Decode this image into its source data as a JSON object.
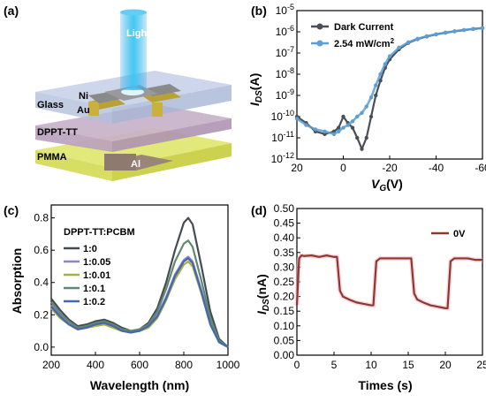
{
  "panels": {
    "a": {
      "label": "(a)",
      "layers": {
        "light": "Light",
        "ni": "Ni",
        "au": "Au",
        "glass": "Glass",
        "dppt": "DPPT-TT",
        "pmma": "PMMA",
        "al": "Al"
      },
      "colors": {
        "light": "#2aa7e8",
        "glass": "#c4cfe6",
        "dppt": "#c6b0c8",
        "pmma": "#e3e87b",
        "electrode": "#8a8a8a",
        "al": "#9a8678"
      }
    },
    "b": {
      "label": "(b)"
    },
    "c": {
      "label": "(c)"
    },
    "d": {
      "label": "(d)"
    }
  },
  "chart_data": [
    {
      "id": "b",
      "type": "line",
      "xlabel": "VG(V)",
      "ylabel": "IDS(A)",
      "x_reversed": true,
      "xlim": [
        20,
        -60
      ],
      "ylim": [
        1e-12,
        1e-05
      ],
      "y_log": true,
      "x_ticks": [
        20,
        0,
        -20,
        -40,
        -60
      ],
      "x_tick_labels": [
        "20",
        "0",
        "-20",
        "-40",
        "-60"
      ],
      "y_ticks": [
        1e-12,
        1e-11,
        1e-10,
        1e-09,
        1e-08,
        1e-07,
        1e-06,
        1e-05
      ],
      "y_tick_labels": [
        "10-12",
        "10-11",
        "10-10",
        "10-9",
        "10-8",
        "10-7",
        "10-6",
        "10-5"
      ],
      "legend_position": "top-right",
      "series": [
        {
          "name": "Dark Current",
          "color": "#4a4f55",
          "x": [
            20,
            16,
            12,
            8,
            4,
            2,
            0,
            -2,
            -4,
            -6,
            -8,
            -10,
            -12,
            -14,
            -16,
            -18,
            -20,
            -24,
            -28,
            -32,
            -36,
            -40,
            -44,
            -48,
            -52,
            -56,
            -60
          ],
          "y": [
            1e-10,
            5e-11,
            2e-11,
            1.5e-11,
            2e-11,
            3e-11,
            1e-10,
            5e-11,
            3e-11,
            1e-11,
            3e-12,
            1e-11,
            1e-10,
            1e-09,
            5e-09,
            2e-08,
            5e-08,
            1.5e-07,
            3e-07,
            4.5e-07,
            6e-07,
            7.5e-07,
            9e-07,
            1.05e-06,
            1.2e-06,
            1.35e-06,
            1.5e-06
          ]
        },
        {
          "name": "2.54 mW/cm2",
          "color": "#5b9fd6",
          "x": [
            20,
            16,
            12,
            8,
            4,
            2,
            0,
            -2,
            -4,
            -6,
            -8,
            -10,
            -12,
            -14,
            -16,
            -18,
            -20,
            -24,
            -28,
            -32,
            -36,
            -40,
            -44,
            -48,
            -52,
            -56,
            -60
          ],
          "y": [
            8e-11,
            4e-11,
            2.5e-11,
            2e-11,
            1.5e-11,
            2e-11,
            3e-11,
            4e-11,
            6e-11,
            1e-10,
            1.5e-10,
            3e-10,
            8e-10,
            3e-09,
            1e-08,
            3e-08,
            7e-08,
            1.8e-07,
            3.2e-07,
            4.7e-07,
            6.2e-07,
            7.7e-07,
            9.2e-07,
            1.07e-06,
            1.22e-06,
            1.37e-06,
            1.5e-06
          ]
        }
      ]
    },
    {
      "id": "c",
      "type": "line",
      "xlabel": "Wavelength (nm)",
      "ylabel": "Absorption",
      "xlim": [
        200,
        1000
      ],
      "ylim": [
        -0.05,
        0.88
      ],
      "x_ticks": [
        200,
        400,
        600,
        800,
        1000
      ],
      "y_ticks": [
        0.0,
        0.2,
        0.4,
        0.6,
        0.8
      ],
      "y_tick_labels": [
        "0.0",
        "0.2",
        "0.4",
        "0.6",
        "0.8"
      ],
      "legend_title": "DPPT-TT:PCBM",
      "legend_position": "top-left",
      "series": [
        {
          "name": "1:0",
          "color": "#454b52",
          "x": [
            200,
            240,
            280,
            320,
            360,
            400,
            440,
            480,
            520,
            560,
            600,
            640,
            680,
            720,
            760,
            800,
            820,
            840,
            880,
            920,
            960,
            1000
          ],
          "y": [
            0.3,
            0.23,
            0.17,
            0.13,
            0.14,
            0.16,
            0.17,
            0.15,
            0.12,
            0.1,
            0.11,
            0.15,
            0.24,
            0.4,
            0.6,
            0.77,
            0.8,
            0.76,
            0.5,
            0.22,
            0.05,
            0.0
          ]
        },
        {
          "name": "1:0.05",
          "color": "#8f86c6",
          "x": [
            200,
            240,
            280,
            320,
            360,
            400,
            440,
            480,
            520,
            560,
            600,
            640,
            680,
            720,
            760,
            800,
            820,
            840,
            880,
            920,
            960,
            1000
          ],
          "y": [
            0.26,
            0.2,
            0.15,
            0.12,
            0.13,
            0.14,
            0.15,
            0.13,
            0.11,
            0.09,
            0.1,
            0.13,
            0.2,
            0.31,
            0.45,
            0.54,
            0.56,
            0.53,
            0.35,
            0.15,
            0.04,
            0.0
          ]
        },
        {
          "name": "1:0.01",
          "color": "#a8b23a",
          "x": [
            200,
            240,
            280,
            320,
            360,
            400,
            440,
            480,
            520,
            560,
            600,
            640,
            680,
            720,
            760,
            800,
            820,
            840,
            880,
            920,
            960,
            1000
          ],
          "y": [
            0.24,
            0.18,
            0.14,
            0.11,
            0.12,
            0.13,
            0.14,
            0.12,
            0.1,
            0.09,
            0.1,
            0.12,
            0.18,
            0.29,
            0.42,
            0.51,
            0.53,
            0.5,
            0.33,
            0.14,
            0.03,
            0.0
          ]
        },
        {
          "name": "1:0.1",
          "color": "#5f8a70",
          "x": [
            200,
            240,
            280,
            320,
            360,
            400,
            440,
            480,
            520,
            560,
            600,
            640,
            680,
            720,
            760,
            800,
            820,
            840,
            880,
            920,
            960,
            1000
          ],
          "y": [
            0.28,
            0.21,
            0.16,
            0.12,
            0.13,
            0.15,
            0.16,
            0.14,
            0.11,
            0.1,
            0.11,
            0.14,
            0.22,
            0.36,
            0.53,
            0.64,
            0.66,
            0.62,
            0.41,
            0.18,
            0.04,
            0.0
          ]
        },
        {
          "name": "1:0.2",
          "color": "#4566b0",
          "x": [
            200,
            240,
            280,
            320,
            360,
            400,
            440,
            480,
            520,
            560,
            600,
            640,
            680,
            720,
            760,
            800,
            820,
            840,
            880,
            920,
            960,
            1000
          ],
          "y": [
            0.25,
            0.19,
            0.14,
            0.11,
            0.12,
            0.14,
            0.15,
            0.13,
            0.1,
            0.09,
            0.1,
            0.13,
            0.19,
            0.3,
            0.44,
            0.53,
            0.55,
            0.52,
            0.34,
            0.14,
            0.03,
            0.0
          ]
        }
      ]
    },
    {
      "id": "d",
      "type": "line",
      "xlabel": "Times (s)",
      "ylabel": "IDS(nA)",
      "xlim": [
        0,
        25
      ],
      "ylim": [
        0.0,
        0.5
      ],
      "x_ticks": [
        0,
        5,
        10,
        15,
        20,
        25
      ],
      "y_ticks": [
        0.0,
        0.05,
        0.1,
        0.15,
        0.2,
        0.25,
        0.3,
        0.35,
        0.4,
        0.45,
        0.5
      ],
      "y_tick_labels": [
        "0.00",
        "0.05",
        "0.10",
        "0.15",
        "0.20",
        "0.25",
        "0.30",
        "0.35",
        "0.40",
        "0.45",
        "0.50"
      ],
      "legend_position": "top-right",
      "series": [
        {
          "name": "0V",
          "color": "#8b3a2b",
          "x": [
            0.0,
            0.3,
            0.6,
            1.0,
            2.0,
            3.0,
            4.0,
            5.0,
            5.4,
            5.8,
            6.2,
            7.0,
            8.0,
            9.0,
            10.0,
            10.3,
            10.7,
            11.2,
            12.0,
            13.0,
            14.0,
            15.0,
            15.4,
            15.8,
            16.2,
            17.0,
            18.0,
            19.0,
            20.0,
            20.3,
            20.7,
            21.2,
            22.0,
            23.0,
            24.0,
            25.0
          ],
          "y": [
            0.17,
            0.33,
            0.34,
            0.338,
            0.34,
            0.335,
            0.34,
            0.335,
            0.335,
            0.22,
            0.2,
            0.19,
            0.18,
            0.175,
            0.17,
            0.17,
            0.32,
            0.33,
            0.33,
            0.33,
            0.33,
            0.33,
            0.33,
            0.21,
            0.19,
            0.18,
            0.17,
            0.165,
            0.16,
            0.16,
            0.32,
            0.33,
            0.33,
            0.33,
            0.325,
            0.325
          ]
        }
      ]
    }
  ]
}
